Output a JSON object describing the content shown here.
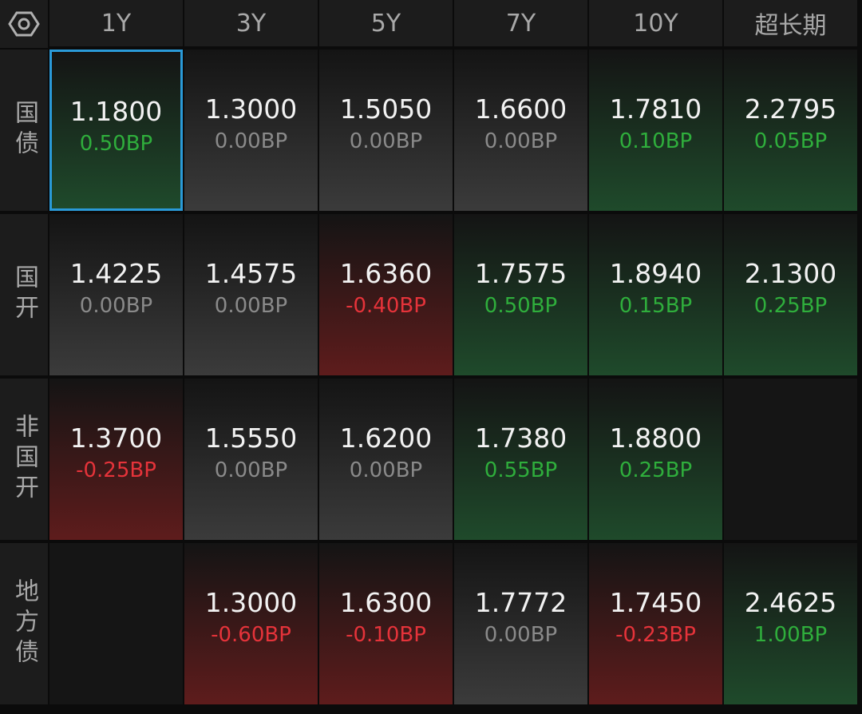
{
  "table": {
    "columns": [
      "1Y",
      "3Y",
      "5Y",
      "7Y",
      "10Y",
      "超长期"
    ],
    "rows": [
      {
        "label": "国债",
        "cells": [
          {
            "yield": "1.1800",
            "change": "0.50BP"
          },
          {
            "yield": "1.3000",
            "change": "0.00BP"
          },
          {
            "yield": "1.5050",
            "change": "0.00BP"
          },
          {
            "yield": "1.6600",
            "change": "0.00BP"
          },
          {
            "yield": "1.7810",
            "change": "0.10BP"
          },
          {
            "yield": "2.2795",
            "change": "0.05BP"
          }
        ]
      },
      {
        "label": "国开",
        "cells": [
          {
            "yield": "1.4225",
            "change": "0.00BP"
          },
          {
            "yield": "1.4575",
            "change": "0.00BP"
          },
          {
            "yield": "1.6360",
            "change": "-0.40BP"
          },
          {
            "yield": "1.7575",
            "change": "0.50BP"
          },
          {
            "yield": "1.8940",
            "change": "0.15BP"
          },
          {
            "yield": "2.1300",
            "change": "0.25BP"
          }
        ]
      },
      {
        "label": "非国开",
        "cells": [
          {
            "yield": "1.3700",
            "change": "-0.25BP"
          },
          {
            "yield": "1.5550",
            "change": "0.00BP"
          },
          {
            "yield": "1.6200",
            "change": "0.00BP"
          },
          {
            "yield": "1.7380",
            "change": "0.55BP"
          },
          {
            "yield": "1.8800",
            "change": "0.25BP"
          },
          null
        ]
      },
      {
        "label": "地方债",
        "cells": [
          null,
          {
            "yield": "1.3000",
            "change": "-0.60BP"
          },
          {
            "yield": "1.6300",
            "change": "-0.10BP"
          },
          {
            "yield": "1.7772",
            "change": "0.00BP"
          },
          {
            "yield": "1.7450",
            "change": "-0.23BP"
          },
          {
            "yield": "2.4625",
            "change": "1.00BP"
          }
        ]
      }
    ]
  }
}
